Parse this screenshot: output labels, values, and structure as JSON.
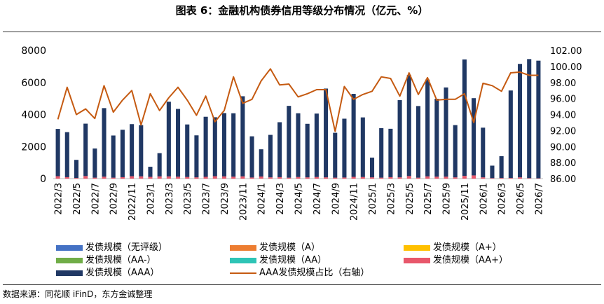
{
  "title": "图表 6：金融机构债券信用等级分布情况（亿元、%）",
  "source": "数据来源：同花顺 iFinD，东方金诚整理",
  "chart_data": {
    "type": "bar",
    "x": [
      "2022/3",
      "2022/4",
      "2022/5",
      "2022/6",
      "2022/7",
      "2022/8",
      "2022/9",
      "2022/10",
      "2022/11",
      "2022/12",
      "2023/1",
      "2023/2",
      "2023/3",
      "2023/4",
      "2023/5",
      "2023/6",
      "2023/7",
      "2023/8",
      "2023/9",
      "2023/10",
      "2023/11",
      "2023/12",
      "2024/1",
      "2024/2",
      "2024/3",
      "2024/4",
      "2024/5",
      "2024/6",
      "2024/7",
      "2024/8",
      "2024/9",
      "2024/10",
      "2024/11",
      "2024/12",
      "2025/1",
      "2025/2",
      "2025/3",
      "2025/4",
      "2025/5",
      "2025/6",
      "2025/7",
      "2025/8",
      "2025/9",
      "2025/10",
      "2025/11",
      "2025/12",
      "2026/1",
      "2026/2",
      "2026/3",
      "2026/4",
      "2026/5",
      "2026/6",
      "2026/7"
    ],
    "x_tick_labels": [
      "2022/3",
      "2022/5",
      "2022/7",
      "2022/9",
      "2022/11",
      "2023/1",
      "2023/3",
      "2023/5",
      "2023/7",
      "2023/9",
      "2023/11",
      "2024/1",
      "2024/3",
      "2024/5",
      "2024/7",
      "2024/9",
      "2024/11",
      "2025/1",
      "2025/3",
      "2025/5",
      "2025/7",
      "2025/9",
      "2025/11",
      "2026/1",
      "2026/3",
      "2026/5",
      "2026/7"
    ],
    "ylim_left": [
      0,
      8000
    ],
    "yticks_left": [
      "0",
      "2000",
      "4000",
      "6000",
      "8000"
    ],
    "ylim_right": [
      86,
      102
    ],
    "yticks_right": [
      "86.00",
      "88.00",
      "90.00",
      "92.00",
      "94.00",
      "96.00",
      "98.00",
      "100.00",
      "102.00"
    ],
    "series": [
      {
        "name": "发债规模（无评级）",
        "color": "#4472c4",
        "axis": "left",
        "values": [
          0,
          0,
          0,
          0,
          0,
          0,
          0,
          0,
          0,
          0,
          0,
          0,
          0,
          0,
          0,
          0,
          0,
          0,
          0,
          0,
          0,
          0,
          0,
          0,
          0,
          0,
          0,
          0,
          0,
          0,
          0,
          0,
          0,
          0,
          0,
          0,
          0,
          0,
          0,
          0,
          0,
          0,
          0,
          0,
          0,
          0,
          0,
          0,
          0,
          0,
          0,
          0,
          0
        ]
      },
      {
        "name": "发债规模（A）",
        "color": "#ed7d31",
        "axis": "left",
        "values": [
          0,
          0,
          0,
          0,
          0,
          0,
          0,
          0,
          0,
          0,
          0,
          0,
          0,
          0,
          0,
          0,
          0,
          0,
          0,
          0,
          0,
          0,
          0,
          0,
          0,
          0,
          0,
          0,
          0,
          0,
          0,
          0,
          0,
          0,
          0,
          0,
          0,
          0,
          0,
          0,
          0,
          0,
          0,
          0,
          0,
          0,
          0,
          0,
          0,
          0,
          0,
          0,
          0
        ]
      },
      {
        "name": "发债规模（A+）",
        "color": "#ffc000",
        "axis": "left",
        "values": [
          0,
          0,
          0,
          0,
          0,
          0,
          0,
          0,
          0,
          0,
          0,
          0,
          0,
          0,
          0,
          0,
          0,
          0,
          0,
          0,
          0,
          0,
          0,
          0,
          0,
          0,
          0,
          0,
          0,
          0,
          0,
          0,
          0,
          0,
          0,
          0,
          0,
          0,
          0,
          0,
          0,
          0,
          0,
          0,
          0,
          0,
          0,
          0,
          0,
          0,
          0,
          0,
          0
        ]
      },
      {
        "name": "发债规模（AA-）",
        "color": "#70ad47",
        "axis": "left",
        "values": [
          0,
          0,
          0,
          0,
          0,
          0,
          0,
          0,
          0,
          0,
          0,
          0,
          0,
          0,
          0,
          0,
          0,
          0,
          0,
          0,
          0,
          0,
          0,
          0,
          0,
          0,
          0,
          0,
          0,
          0,
          0,
          0,
          0,
          0,
          0,
          0,
          0,
          0,
          0,
          0,
          0,
          0,
          0,
          0,
          0,
          0,
          0,
          0,
          0,
          0,
          0,
          0,
          0
        ]
      },
      {
        "name": "发债规模（AA）",
        "color": "#2ec4b6",
        "axis": "left",
        "values": [
          0,
          0,
          0,
          0,
          0,
          0,
          0,
          0,
          0,
          0,
          0,
          0,
          0,
          0,
          0,
          0,
          0,
          0,
          0,
          0,
          0,
          0,
          0,
          0,
          0,
          0,
          0,
          0,
          0,
          0,
          0,
          0,
          0,
          0,
          0,
          0,
          0,
          0,
          0,
          0,
          0,
          0,
          0,
          0,
          0,
          0,
          0,
          0,
          0,
          0,
          0,
          0,
          0
        ]
      },
      {
        "name": "发债规模（AA+）",
        "color": "#e8576b",
        "axis": "left",
        "values": [
          150,
          90,
          40,
          160,
          60,
          120,
          60,
          90,
          150,
          140,
          110,
          140,
          140,
          120,
          100,
          80,
          110,
          150,
          140,
          120,
          140,
          70,
          130,
          80,
          90,
          60,
          100,
          80,
          100,
          80,
          60,
          70,
          110,
          100,
          80,
          60,
          90,
          80,
          160,
          60,
          140,
          120,
          120,
          80,
          170,
          200,
          80,
          30,
          40,
          40,
          80,
          30,
          20
        ]
      },
      {
        "name": "发债规模（AAA）",
        "color": "#203864",
        "axis": "left",
        "values": [
          2950,
          2810,
          1130,
          3270,
          1820,
          4280,
          2630,
          2960,
          3250,
          3200,
          630,
          1450,
          4660,
          4230,
          3280,
          2620,
          3750,
          3680,
          3950,
          3960,
          5000,
          2570,
          1700,
          2650,
          3430,
          4480,
          3980,
          3340,
          3960,
          5540,
          2800,
          3670,
          5180,
          3720,
          1230,
          3090,
          3020,
          4820,
          6300,
          4470,
          6040,
          4860,
          5570,
          3260,
          7270,
          4820,
          3100,
          780,
          1360,
          5460,
          7080,
          7430,
          7340
        ]
      },
      {
        "name": "AAA发债规模占比（右轴）",
        "color": "#c55a11",
        "axis": "right",
        "type": "line",
        "values": [
          93.4,
          97.4,
          94.0,
          94.7,
          93.5,
          97.6,
          94.3,
          95.8,
          97.0,
          92.7,
          96.6,
          94.5,
          96.1,
          97.4,
          95.8,
          93.9,
          96.3,
          93.1,
          94.5,
          98.7,
          95.4,
          95.9,
          98.2,
          99.7,
          97.7,
          97.8,
          96.2,
          96.6,
          97.1,
          97.1,
          91.9,
          97.5,
          95.9,
          96.5,
          96.9,
          98.7,
          98.5,
          96.3,
          99.2,
          96.5,
          98.6,
          95.8,
          95.9,
          95.9,
          96.6,
          93.0,
          97.9,
          97.6,
          96.9,
          99.2,
          99.3,
          98.9,
          98.9
        ]
      }
    ]
  }
}
